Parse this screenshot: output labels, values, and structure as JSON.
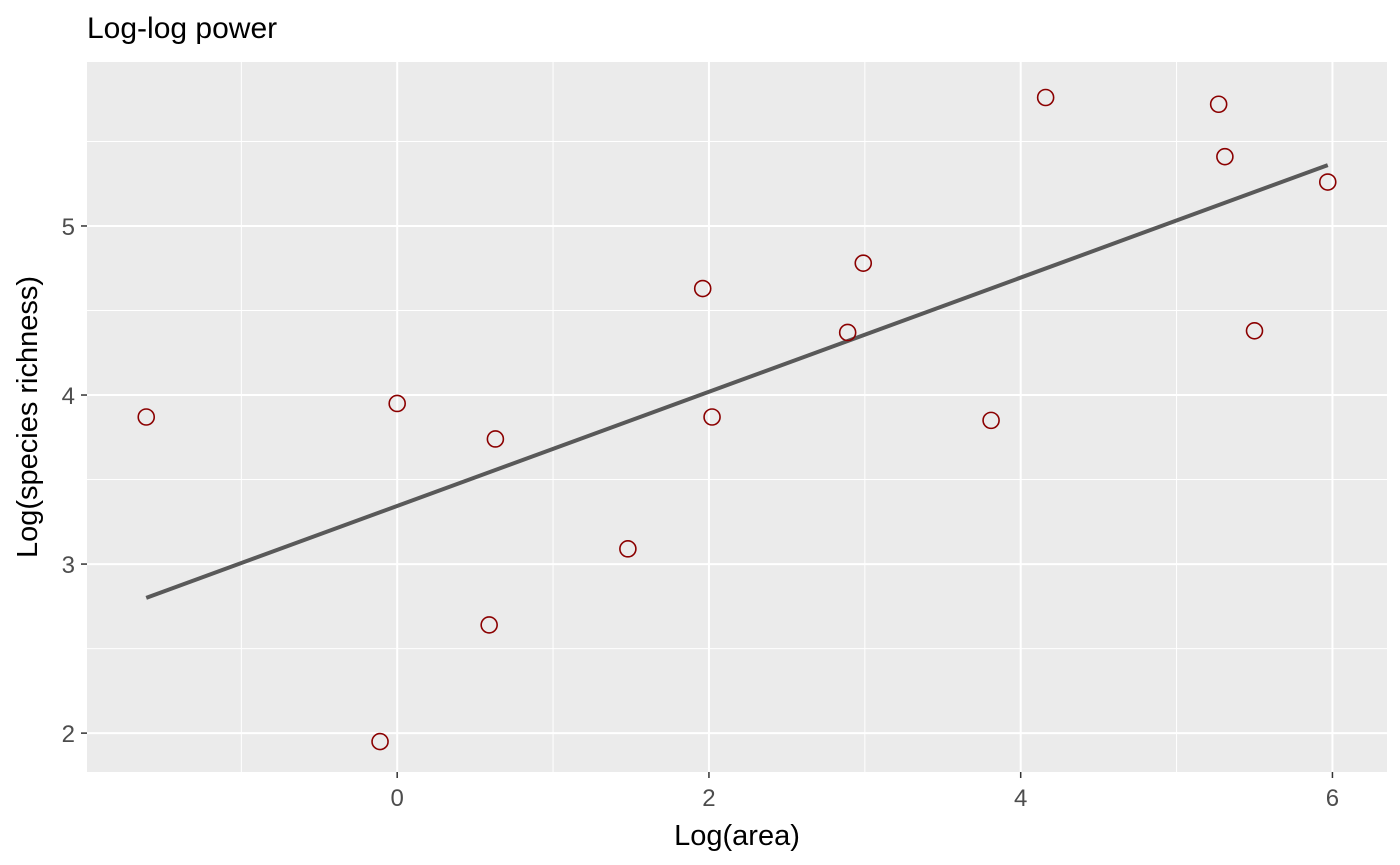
{
  "chart_data": {
    "type": "scatter",
    "title": "Log-log power",
    "xlabel": "Log(area)",
    "ylabel": "Log(species richness)",
    "xlim": [
      -1.99,
      6.35
    ],
    "ylim": [
      1.77,
      5.97
    ],
    "x_ticks": [
      0,
      2,
      4,
      6
    ],
    "x_tick_labels": [
      "0",
      "2",
      "4",
      "6"
    ],
    "y_ticks": [
      2,
      3,
      4,
      5
    ],
    "y_tick_labels": [
      "2",
      "3",
      "4",
      "5"
    ],
    "grid": true,
    "legend": "none",
    "point_color": "#8b0000",
    "line_color": "#595959",
    "panel_color": "#ebebeb",
    "points": [
      {
        "x": -1.61,
        "y": 3.87
      },
      {
        "x": -0.11,
        "y": 1.95
      },
      {
        "x": 0.0,
        "y": 3.95
      },
      {
        "x": 0.59,
        "y": 2.64
      },
      {
        "x": 0.63,
        "y": 3.74
      },
      {
        "x": 1.48,
        "y": 3.09
      },
      {
        "x": 1.96,
        "y": 4.63
      },
      {
        "x": 2.02,
        "y": 3.87
      },
      {
        "x": 2.89,
        "y": 4.37
      },
      {
        "x": 2.99,
        "y": 4.78
      },
      {
        "x": 3.81,
        "y": 3.85
      },
      {
        "x": 4.16,
        "y": 5.76
      },
      {
        "x": 5.27,
        "y": 5.72
      },
      {
        "x": 5.31,
        "y": 5.41
      },
      {
        "x": 5.5,
        "y": 4.38
      },
      {
        "x": 5.97,
        "y": 5.26
      }
    ],
    "fit_line": {
      "x": [
        -1.61,
        5.97
      ],
      "y": [
        2.8,
        5.36
      ]
    }
  }
}
